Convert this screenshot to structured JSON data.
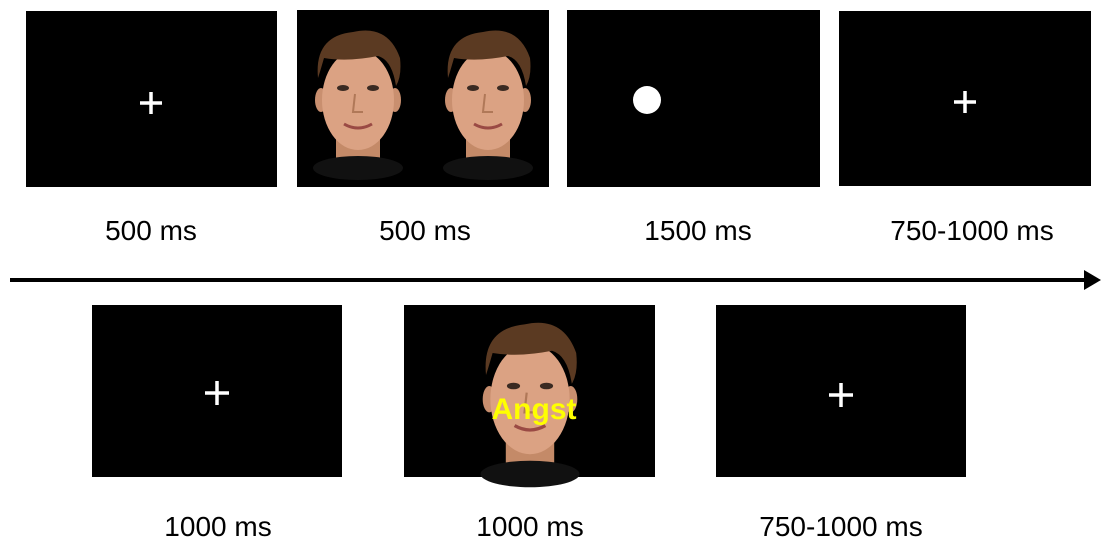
{
  "frames": [
    {
      "duration": "500 ms"
    },
    {
      "duration": "500 ms"
    },
    {
      "duration": "1500 ms"
    },
    {
      "duration": "750-1000 ms"
    },
    {
      "duration": "1000 ms"
    },
    {
      "duration": "1000 ms",
      "word": "Angst"
    },
    {
      "duration": "750-1000 ms"
    }
  ]
}
